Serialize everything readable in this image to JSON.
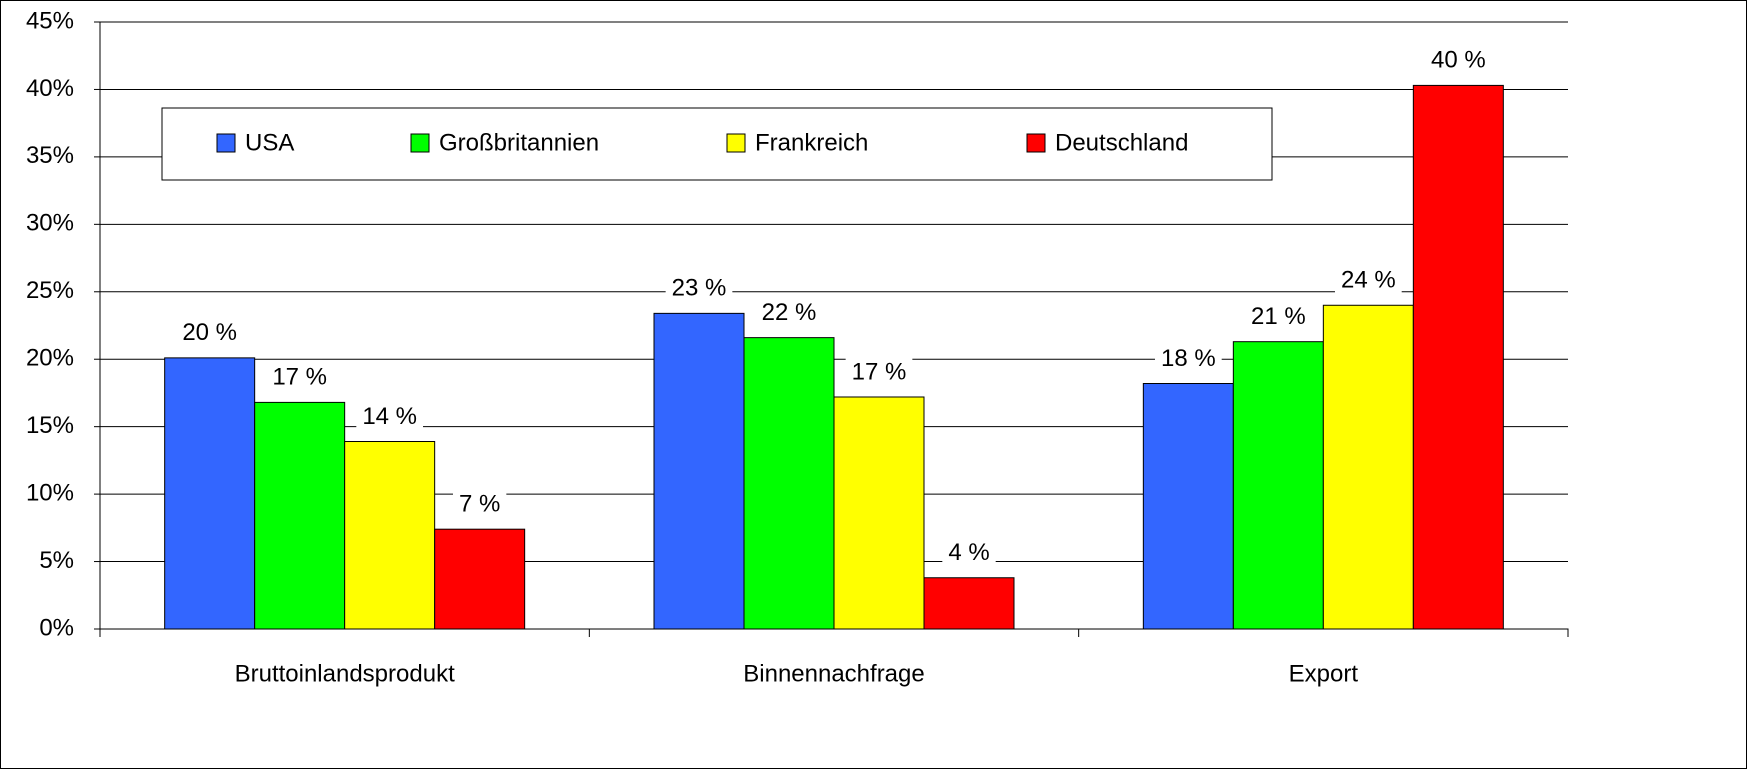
{
  "chart_data": {
    "type": "bar",
    "categories": [
      "Bruttoinlandsprodukt",
      "Binnennachfrage",
      "Export"
    ],
    "series": [
      {
        "name": "USA",
        "color": "#3366ff",
        "values": [
          20.1,
          23.4,
          18.2
        ],
        "value_labels": [
          "20 %",
          "23 %",
          "18 %"
        ]
      },
      {
        "name": "Großbritannien",
        "color": "#00ff00",
        "values": [
          16.8,
          21.6,
          21.3
        ],
        "value_labels": [
          "17 %",
          "22 %",
          "21 %"
        ]
      },
      {
        "name": "Frankreich",
        "color": "#ffff00",
        "values": [
          13.9,
          17.2,
          24.0
        ],
        "value_labels": [
          "14 %",
          "17 %",
          "24 %"
        ]
      },
      {
        "name": "Deutschland",
        "color": "#ff0000",
        "values": [
          7.4,
          3.8,
          40.3
        ],
        "value_labels": [
          "7 %",
          "4 %",
          "40 %"
        ]
      }
    ],
    "ylim": [
      0,
      45
    ],
    "yticks": [
      {
        "value": 0,
        "label": "0%"
      },
      {
        "value": 5,
        "label": "5%"
      },
      {
        "value": 10,
        "label": "10%"
      },
      {
        "value": 15,
        "label": "15%"
      },
      {
        "value": 20,
        "label": "20%"
      },
      {
        "value": 25,
        "label": "25%"
      },
      {
        "value": 30,
        "label": "30%"
      },
      {
        "value": 35,
        "label": "35%"
      },
      {
        "value": 40,
        "label": "40%"
      },
      {
        "value": 45,
        "label": "45%"
      }
    ],
    "grid": true,
    "legend": "top"
  }
}
